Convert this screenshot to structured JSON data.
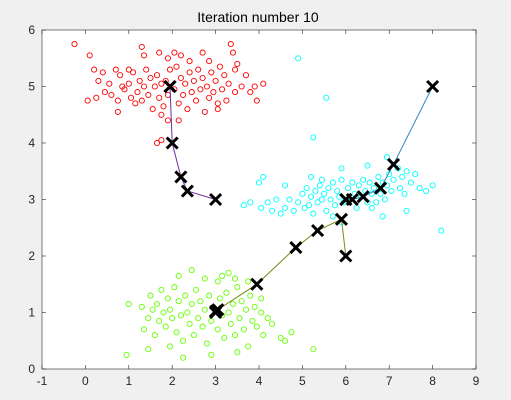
{
  "figure": {
    "background": "#f0f0f0",
    "axes_background": "#ffffff"
  },
  "chart_data": {
    "type": "scatter",
    "title": "Iteration number 10",
    "xlabel": "",
    "ylabel": "",
    "xlim": [
      -1,
      9
    ],
    "ylim": [
      0,
      6
    ],
    "xticks": [
      "-1",
      "0",
      "1",
      "2",
      "3",
      "4",
      "5",
      "6",
      "7",
      "8",
      "9"
    ],
    "yticks": [
      "0",
      "1",
      "2",
      "3",
      "4",
      "5",
      "6"
    ],
    "grid": false,
    "series": [
      {
        "color": "#ff0000",
        "marker": "circle-open",
        "points": [
          [
            -0.25,
            5.75
          ],
          [
            0.1,
            5.55
          ],
          [
            0.2,
            5.3
          ],
          [
            0.3,
            5.1
          ],
          [
            0.05,
            4.75
          ],
          [
            0.25,
            4.8
          ],
          [
            0.4,
            5.25
          ],
          [
            0.45,
            4.9
          ],
          [
            0.55,
            5.05
          ],
          [
            0.6,
            4.85
          ],
          [
            0.7,
            5.3
          ],
          [
            0.75,
            4.75
          ],
          [
            0.8,
            5.2
          ],
          [
            0.85,
            5.0
          ],
          [
            0.9,
            4.95
          ],
          [
            1.0,
            5.05
          ],
          [
            1.05,
            4.8
          ],
          [
            1.1,
            5.25
          ],
          [
            1.15,
            4.7
          ],
          [
            1.2,
            4.9
          ],
          [
            1.25,
            5.1
          ],
          [
            1.3,
            4.75
          ],
          [
            1.35,
            5.0
          ],
          [
            1.4,
            5.3
          ],
          [
            1.45,
            4.85
          ],
          [
            1.5,
            5.15
          ],
          [
            1.55,
            4.6
          ],
          [
            1.6,
            5.0
          ],
          [
            1.65,
            5.2
          ],
          [
            1.7,
            4.8
          ],
          [
            1.75,
            5.05
          ],
          [
            1.8,
            4.65
          ],
          [
            1.85,
            5.1
          ],
          [
            1.9,
            4.85
          ],
          [
            1.95,
            5.3
          ],
          [
            2.05,
            4.95
          ],
          [
            2.1,
            5.35
          ],
          [
            2.15,
            4.7
          ],
          [
            2.2,
            5.15
          ],
          [
            2.25,
            4.85
          ],
          [
            2.3,
            5.05
          ],
          [
            2.35,
            4.6
          ],
          [
            2.4,
            5.25
          ],
          [
            2.45,
            4.9
          ],
          [
            2.5,
            5.1
          ],
          [
            2.55,
            4.75
          ],
          [
            2.6,
            5.3
          ],
          [
            2.65,
            4.95
          ],
          [
            2.7,
            5.15
          ],
          [
            2.75,
            4.55
          ],
          [
            2.8,
            5.0
          ],
          [
            2.85,
            4.8
          ],
          [
            2.9,
            5.25
          ],
          [
            2.95,
            4.9
          ],
          [
            3.0,
            5.1
          ],
          [
            3.05,
            4.7
          ],
          [
            3.1,
            5.35
          ],
          [
            3.15,
            4.95
          ],
          [
            3.2,
            5.2
          ],
          [
            3.25,
            4.75
          ],
          [
            3.3,
            5.05
          ],
          [
            3.35,
            5.75
          ],
          [
            3.4,
            5.6
          ],
          [
            3.45,
            4.9
          ],
          [
            3.5,
            5.4
          ],
          [
            3.6,
            5.0
          ],
          [
            3.7,
            5.2
          ],
          [
            3.8,
            4.9
          ],
          [
            3.9,
            5.0
          ],
          [
            3.95,
            4.75
          ],
          [
            4.1,
            5.05
          ],
          [
            1.3,
            5.7
          ],
          [
            1.35,
            5.55
          ],
          [
            1.7,
            5.6
          ],
          [
            1.9,
            5.5
          ],
          [
            2.05,
            5.6
          ],
          [
            2.2,
            5.55
          ],
          [
            2.4,
            5.45
          ],
          [
            2.7,
            5.6
          ],
          [
            2.85,
            5.45
          ],
          [
            1.9,
            4.4
          ],
          [
            1.75,
            4.5
          ],
          [
            2.15,
            4.4
          ],
          [
            1.75,
            4.05
          ],
          [
            1.65,
            4.0
          ],
          [
            3.05,
            4.6
          ],
          [
            3.45,
            5.3
          ],
          [
            1.0,
            5.3
          ],
          [
            0.75,
            4.55
          ]
        ]
      },
      {
        "color": "#00ffff",
        "marker": "circle-open",
        "points": [
          [
            4.9,
            5.5
          ],
          [
            5.55,
            4.8
          ],
          [
            5.25,
            4.1
          ],
          [
            4.0,
            3.3
          ],
          [
            3.8,
            2.95
          ],
          [
            3.65,
            2.9
          ],
          [
            4.05,
            2.85
          ],
          [
            4.2,
            2.95
          ],
          [
            4.3,
            2.8
          ],
          [
            4.4,
            3.0
          ],
          [
            4.5,
            2.75
          ],
          [
            4.6,
            2.85
          ],
          [
            4.7,
            3.0
          ],
          [
            4.8,
            2.8
          ],
          [
            4.9,
            2.95
          ],
          [
            5.0,
            3.1
          ],
          [
            5.05,
            2.85
          ],
          [
            5.1,
            3.2
          ],
          [
            5.15,
            2.9
          ],
          [
            5.2,
            3.05
          ],
          [
            5.25,
            2.75
          ],
          [
            5.3,
            3.15
          ],
          [
            5.35,
            2.95
          ],
          [
            5.4,
            3.25
          ],
          [
            5.45,
            3.0
          ],
          [
            5.5,
            3.1
          ],
          [
            5.55,
            2.8
          ],
          [
            5.6,
            3.2
          ],
          [
            5.65,
            3.0
          ],
          [
            5.7,
            3.3
          ],
          [
            5.75,
            2.9
          ],
          [
            5.8,
            3.15
          ],
          [
            5.85,
            3.05
          ],
          [
            5.9,
            3.35
          ],
          [
            5.95,
            2.95
          ],
          [
            6.05,
            3.2
          ],
          [
            6.1,
            3.0
          ],
          [
            6.15,
            3.3
          ],
          [
            6.2,
            3.1
          ],
          [
            6.25,
            2.85
          ],
          [
            6.3,
            3.25
          ],
          [
            6.35,
            3.05
          ],
          [
            6.4,
            3.35
          ],
          [
            6.45,
            3.15
          ],
          [
            6.5,
            2.95
          ],
          [
            6.55,
            3.3
          ],
          [
            6.6,
            3.1
          ],
          [
            6.65,
            3.2
          ],
          [
            6.7,
            2.95
          ],
          [
            6.75,
            3.4
          ],
          [
            6.8,
            3.1
          ],
          [
            6.85,
            3.3
          ],
          [
            6.9,
            3.0
          ],
          [
            6.95,
            3.25
          ],
          [
            7.0,
            3.45
          ],
          [
            7.05,
            3.15
          ],
          [
            7.1,
            3.35
          ],
          [
            7.2,
            3.55
          ],
          [
            7.25,
            3.2
          ],
          [
            7.3,
            3.4
          ],
          [
            7.35,
            3.1
          ],
          [
            7.4,
            3.5
          ],
          [
            7.5,
            3.3
          ],
          [
            7.6,
            3.45
          ],
          [
            7.7,
            3.2
          ],
          [
            7.85,
            3.15
          ],
          [
            8.0,
            3.25
          ],
          [
            8.2,
            2.45
          ],
          [
            7.4,
            2.8
          ],
          [
            6.85,
            2.7
          ],
          [
            6.6,
            2.85
          ],
          [
            5.9,
            2.6
          ],
          [
            5.7,
            2.7
          ],
          [
            4.6,
            3.25
          ],
          [
            4.1,
            3.4
          ],
          [
            5.2,
            3.4
          ],
          [
            5.45,
            3.35
          ],
          [
            5.9,
            3.55
          ],
          [
            6.5,
            3.6
          ],
          [
            6.95,
            3.75
          ]
        ]
      },
      {
        "color": "#66ff00",
        "marker": "circle-open",
        "points": [
          [
            1.0,
            1.15
          ],
          [
            0.95,
            0.25
          ],
          [
            1.3,
            1.1
          ],
          [
            1.35,
            0.7
          ],
          [
            1.45,
            0.9
          ],
          [
            1.5,
            1.3
          ],
          [
            1.55,
            1.05
          ],
          [
            1.6,
            0.6
          ],
          [
            1.65,
            1.15
          ],
          [
            1.7,
            0.85
          ],
          [
            1.75,
            1.4
          ],
          [
            1.8,
            1.0
          ],
          [
            1.85,
            0.75
          ],
          [
            1.9,
            1.25
          ],
          [
            1.95,
            1.05
          ],
          [
            2.0,
            0.9
          ],
          [
            2.05,
            1.45
          ],
          [
            2.1,
            0.65
          ],
          [
            2.15,
            1.2
          ],
          [
            2.2,
            0.95
          ],
          [
            2.25,
            0.5
          ],
          [
            2.3,
            1.3
          ],
          [
            2.35,
            1.0
          ],
          [
            2.4,
            0.8
          ],
          [
            2.45,
            1.15
          ],
          [
            2.5,
            0.6
          ],
          [
            2.55,
            1.4
          ],
          [
            2.6,
            0.9
          ],
          [
            2.65,
            1.2
          ],
          [
            2.7,
            0.75
          ],
          [
            2.75,
            1.05
          ],
          [
            2.8,
            0.45
          ],
          [
            2.85,
            1.3
          ],
          [
            2.9,
            0.85
          ],
          [
            2.95,
            1.1
          ],
          [
            3.05,
            0.7
          ],
          [
            3.1,
            1.25
          ],
          [
            3.15,
            0.95
          ],
          [
            3.2,
            0.55
          ],
          [
            3.25,
            1.35
          ],
          [
            3.3,
            1.0
          ],
          [
            3.35,
            0.8
          ],
          [
            3.4,
            1.15
          ],
          [
            3.45,
            0.6
          ],
          [
            3.5,
            1.45
          ],
          [
            3.55,
            0.9
          ],
          [
            3.6,
            1.2
          ],
          [
            3.65,
            0.7
          ],
          [
            3.7,
            1.05
          ],
          [
            3.75,
            0.4
          ],
          [
            3.8,
            1.3
          ],
          [
            3.85,
            0.85
          ],
          [
            3.9,
            1.1
          ],
          [
            3.95,
            0.75
          ],
          [
            4.05,
            1.0
          ],
          [
            4.1,
            0.6
          ],
          [
            4.2,
            0.9
          ],
          [
            4.3,
            0.8
          ],
          [
            4.5,
            0.55
          ],
          [
            4.6,
            0.5
          ],
          [
            4.75,
            0.65
          ],
          [
            5.25,
            0.35
          ],
          [
            2.15,
            1.65
          ],
          [
            2.45,
            1.75
          ],
          [
            3.05,
            1.55
          ],
          [
            3.15,
            1.65
          ],
          [
            3.3,
            1.7
          ],
          [
            3.45,
            1.6
          ],
          [
            3.75,
            1.55
          ],
          [
            2.75,
            1.6
          ],
          [
            4.05,
            1.25
          ],
          [
            2.25,
            0.2
          ],
          [
            2.9,
            0.25
          ],
          [
            3.5,
            0.3
          ],
          [
            1.45,
            0.35
          ],
          [
            1.95,
            0.4
          ]
        ]
      }
    ],
    "centroid_paths": [
      {
        "color": "#7030a0",
        "points": [
          [
            3.0,
            3.0
          ],
          [
            2.35,
            3.15
          ],
          [
            2.2,
            3.4
          ],
          [
            2.0,
            4.0
          ],
          [
            1.95,
            5.0
          ],
          [
            1.95,
            5.0
          ]
        ]
      },
      {
        "color": "#2e8bbd",
        "points": [
          [
            8.0,
            5.0
          ],
          [
            7.1,
            3.62
          ],
          [
            6.8,
            3.2
          ],
          [
            6.4,
            3.05
          ],
          [
            6.15,
            3.0
          ],
          [
            6.0,
            3.0
          ],
          [
            6.0,
            3.0
          ]
        ]
      },
      {
        "color": "#7a8a1a",
        "points": [
          [
            6.0,
            2.0
          ],
          [
            5.9,
            2.65
          ],
          [
            5.35,
            2.45
          ],
          [
            4.85,
            2.15
          ],
          [
            3.95,
            1.5
          ],
          [
            3.05,
            1.05
          ],
          [
            3.0,
            1.02
          ],
          [
            3.0,
            1.0
          ]
        ]
      }
    ],
    "centroid_path_colors_note": ""
  }
}
